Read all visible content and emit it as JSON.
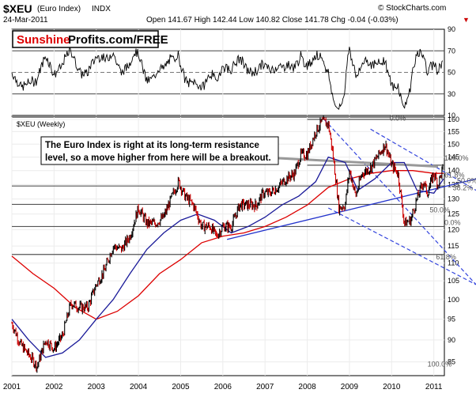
{
  "header": {
    "symbol": "$XEU",
    "name": "(Euro Index)",
    "exchange": "INDX",
    "date": "24-Mar-2011",
    "watermark": "© StockCharts.com",
    "quote": "Open 141.67  High 142.44  Low 140.82  Close 141.78  Chg -0.04 (-0.03%)",
    "quote_marker": "▼"
  },
  "rsi_panel": {
    "logo_part1": "Sunshine",
    "logo_part2": "Profits.com/FREE",
    "ticks": [
      "90",
      "70",
      "50",
      "30",
      "10"
    ]
  },
  "main_panel": {
    "label": "$XEU (Weekly)",
    "annotation_line1": "The Euro Index is right at its long-term resistance",
    "annotation_line2": "level, so a move higher from here will be a breakout.",
    "fib_labels": [
      "0.0%",
      "100.0%",
      "61.8%",
      "38.2%",
      "50.0%",
      "50.0%",
      "0.0%",
      "61.8%",
      "100.0%"
    ],
    "y_ticks": [
      "160",
      "155",
      "150",
      "145",
      "140",
      "135",
      "130",
      "125",
      "120",
      "115",
      "110",
      "105",
      "100",
      "95",
      "90",
      "85"
    ],
    "x_ticks": [
      "2001",
      "2002",
      "2003",
      "2004",
      "2005",
      "2006",
      "2007",
      "2008",
      "2009",
      "2010",
      "2011"
    ]
  },
  "colors": {
    "price_up": "#000000",
    "price_down": "#cc0000",
    "ma_short": "#1a1a99",
    "ma_long": "#dd0000",
    "support_line": "#2233cc",
    "channel": "#3344dd",
    "horizontal": "#555555",
    "resistance": "#999999",
    "logo_red": "#dd0000"
  },
  "chart_data": {
    "type": "line",
    "title": "$XEU (Euro Index) INDX",
    "x_range": [
      2001,
      2011.25
    ],
    "y_range": [
      82,
      161
    ],
    "scale": "log",
    "series": [
      {
        "name": "$XEU (Weekly)",
        "x": [
          2001.0,
          2001.2,
          2001.45,
          2001.6,
          2001.8,
          2002.0,
          2002.2,
          2002.4,
          2002.6,
          2002.8,
          2003.0,
          2003.2,
          2003.4,
          2003.6,
          2003.8,
          2004.0,
          2004.2,
          2004.4,
          2004.6,
          2004.8,
          2004.95,
          2005.1,
          2005.3,
          2005.5,
          2005.7,
          2005.85,
          2006.0,
          2006.2,
          2006.4,
          2006.6,
          2006.8,
          2006.95,
          2007.1,
          2007.3,
          2007.5,
          2007.7,
          2007.85,
          2008.0,
          2008.2,
          2008.35,
          2008.5,
          2008.6,
          2008.75,
          2008.9,
          2009.0,
          2009.15,
          2009.3,
          2009.5,
          2009.7,
          2009.85,
          2010.0,
          2010.15,
          2010.3,
          2010.45,
          2010.6,
          2010.75,
          2010.85,
          2011.0,
          2011.1,
          2011.23
        ],
        "values": [
          94,
          89,
          86,
          84,
          90,
          88,
          91,
          99,
          98,
          98,
          104,
          108,
          115,
          114,
          118,
          127,
          122,
          122,
          124,
          131,
          136,
          131,
          128,
          121,
          121,
          118,
          121,
          121,
          128,
          128,
          128,
          132,
          132,
          134,
          137,
          139,
          146,
          146,
          155,
          159,
          158,
          147,
          127,
          128,
          140,
          131,
          139,
          141,
          146,
          150,
          142,
          139,
          122,
          123,
          130,
          136,
          132,
          139,
          135,
          141.78
        ]
      },
      {
        "name": "moving-average-short",
        "x": [
          2001.0,
          2001.4,
          2001.8,
          2002.2,
          2002.6,
          2003.0,
          2003.4,
          2003.8,
          2004.2,
          2004.6,
          2005.0,
          2005.4,
          2005.8,
          2006.2,
          2006.6,
          2007.0,
          2007.4,
          2007.8,
          2008.2,
          2008.5,
          2008.9,
          2009.2,
          2009.6,
          2010.0,
          2010.3,
          2010.6,
          2011.0,
          2011.23
        ],
        "values": [
          95,
          90,
          86,
          87,
          90,
          95,
          100,
          107,
          114,
          119,
          123,
          125,
          123,
          119,
          121,
          124,
          128,
          131,
          136,
          145,
          143,
          133,
          137,
          143,
          143,
          133,
          132,
          137
        ]
      },
      {
        "name": "moving-average-long",
        "x": [
          2001.0,
          2001.5,
          2002.0,
          2002.5,
          2003.0,
          2003.5,
          2004.0,
          2004.5,
          2005.0,
          2005.5,
          2006.0,
          2006.5,
          2007.0,
          2007.5,
          2008.0,
          2008.5,
          2009.0,
          2009.5,
          2010.0,
          2010.5,
          2011.0,
          2011.23
        ],
        "values": [
          112,
          107,
          103,
          98,
          95,
          97,
          101,
          107,
          111,
          116,
          118,
          119,
          121,
          124,
          128,
          134,
          137,
          139,
          140,
          140,
          139,
          139
        ]
      }
    ],
    "indicator": {
      "name": "RSI",
      "ylim": [
        10,
        90
      ],
      "reference_levels": [
        70,
        50,
        30
      ]
    },
    "horizontal_levels": [
      160,
      142,
      134.5,
      128.2,
      121,
      112.5
    ]
  }
}
